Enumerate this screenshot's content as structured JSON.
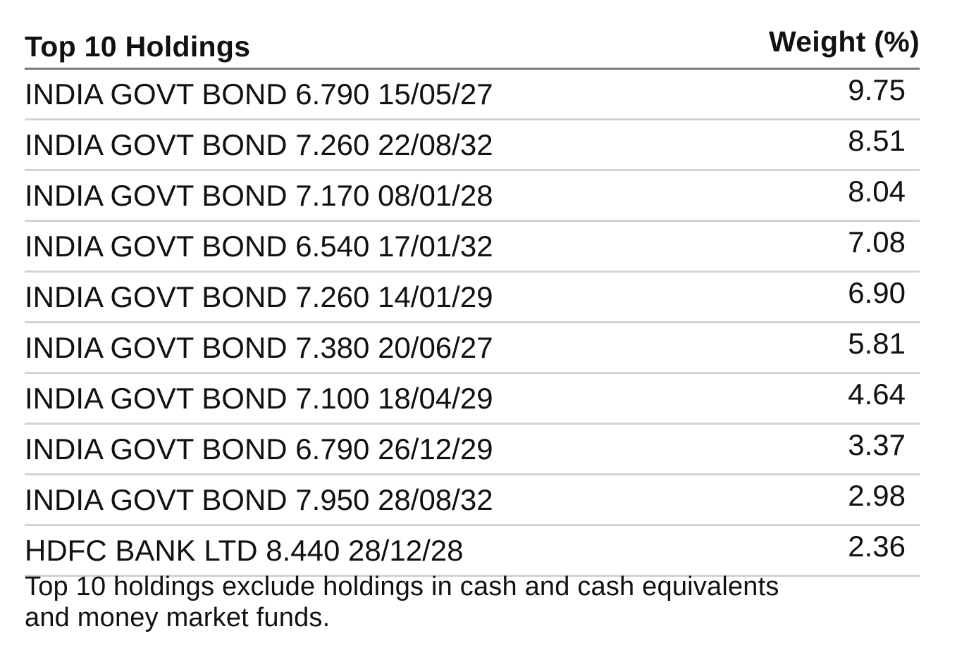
{
  "table": {
    "title": "Top 10 Holdings",
    "weight_header": "Weight (%)",
    "rows": [
      {
        "name": "INDIA GOVT BOND 6.790 15/05/27",
        "weight": "9.75"
      },
      {
        "name": "INDIA GOVT BOND 7.260 22/08/32",
        "weight": "8.51"
      },
      {
        "name": "INDIA GOVT BOND 7.170 08/01/28",
        "weight": "8.04"
      },
      {
        "name": "INDIA GOVT BOND 6.540 17/01/32",
        "weight": "7.08"
      },
      {
        "name": "INDIA GOVT BOND 7.260 14/01/29",
        "weight": "6.90"
      },
      {
        "name": "INDIA GOVT BOND 7.380 20/06/27",
        "weight": "5.81"
      },
      {
        "name": "INDIA GOVT BOND 7.100 18/04/29",
        "weight": "4.64"
      },
      {
        "name": "INDIA GOVT BOND 6.790 26/12/29",
        "weight": "3.37"
      },
      {
        "name": "INDIA GOVT BOND 7.950 28/08/32",
        "weight": "2.98"
      },
      {
        "name": "HDFC BANK LTD 8.440 28/12/28",
        "weight": "2.36"
      }
    ],
    "footnote_line1": "Top 10 holdings exclude holdings in cash and cash equivalents",
    "footnote_line2": "and money market funds."
  },
  "colors": {
    "text": "#111111",
    "header_rule": "#7a7a7a",
    "row_rule": "#d3d3d3",
    "background": "#ffffff"
  }
}
